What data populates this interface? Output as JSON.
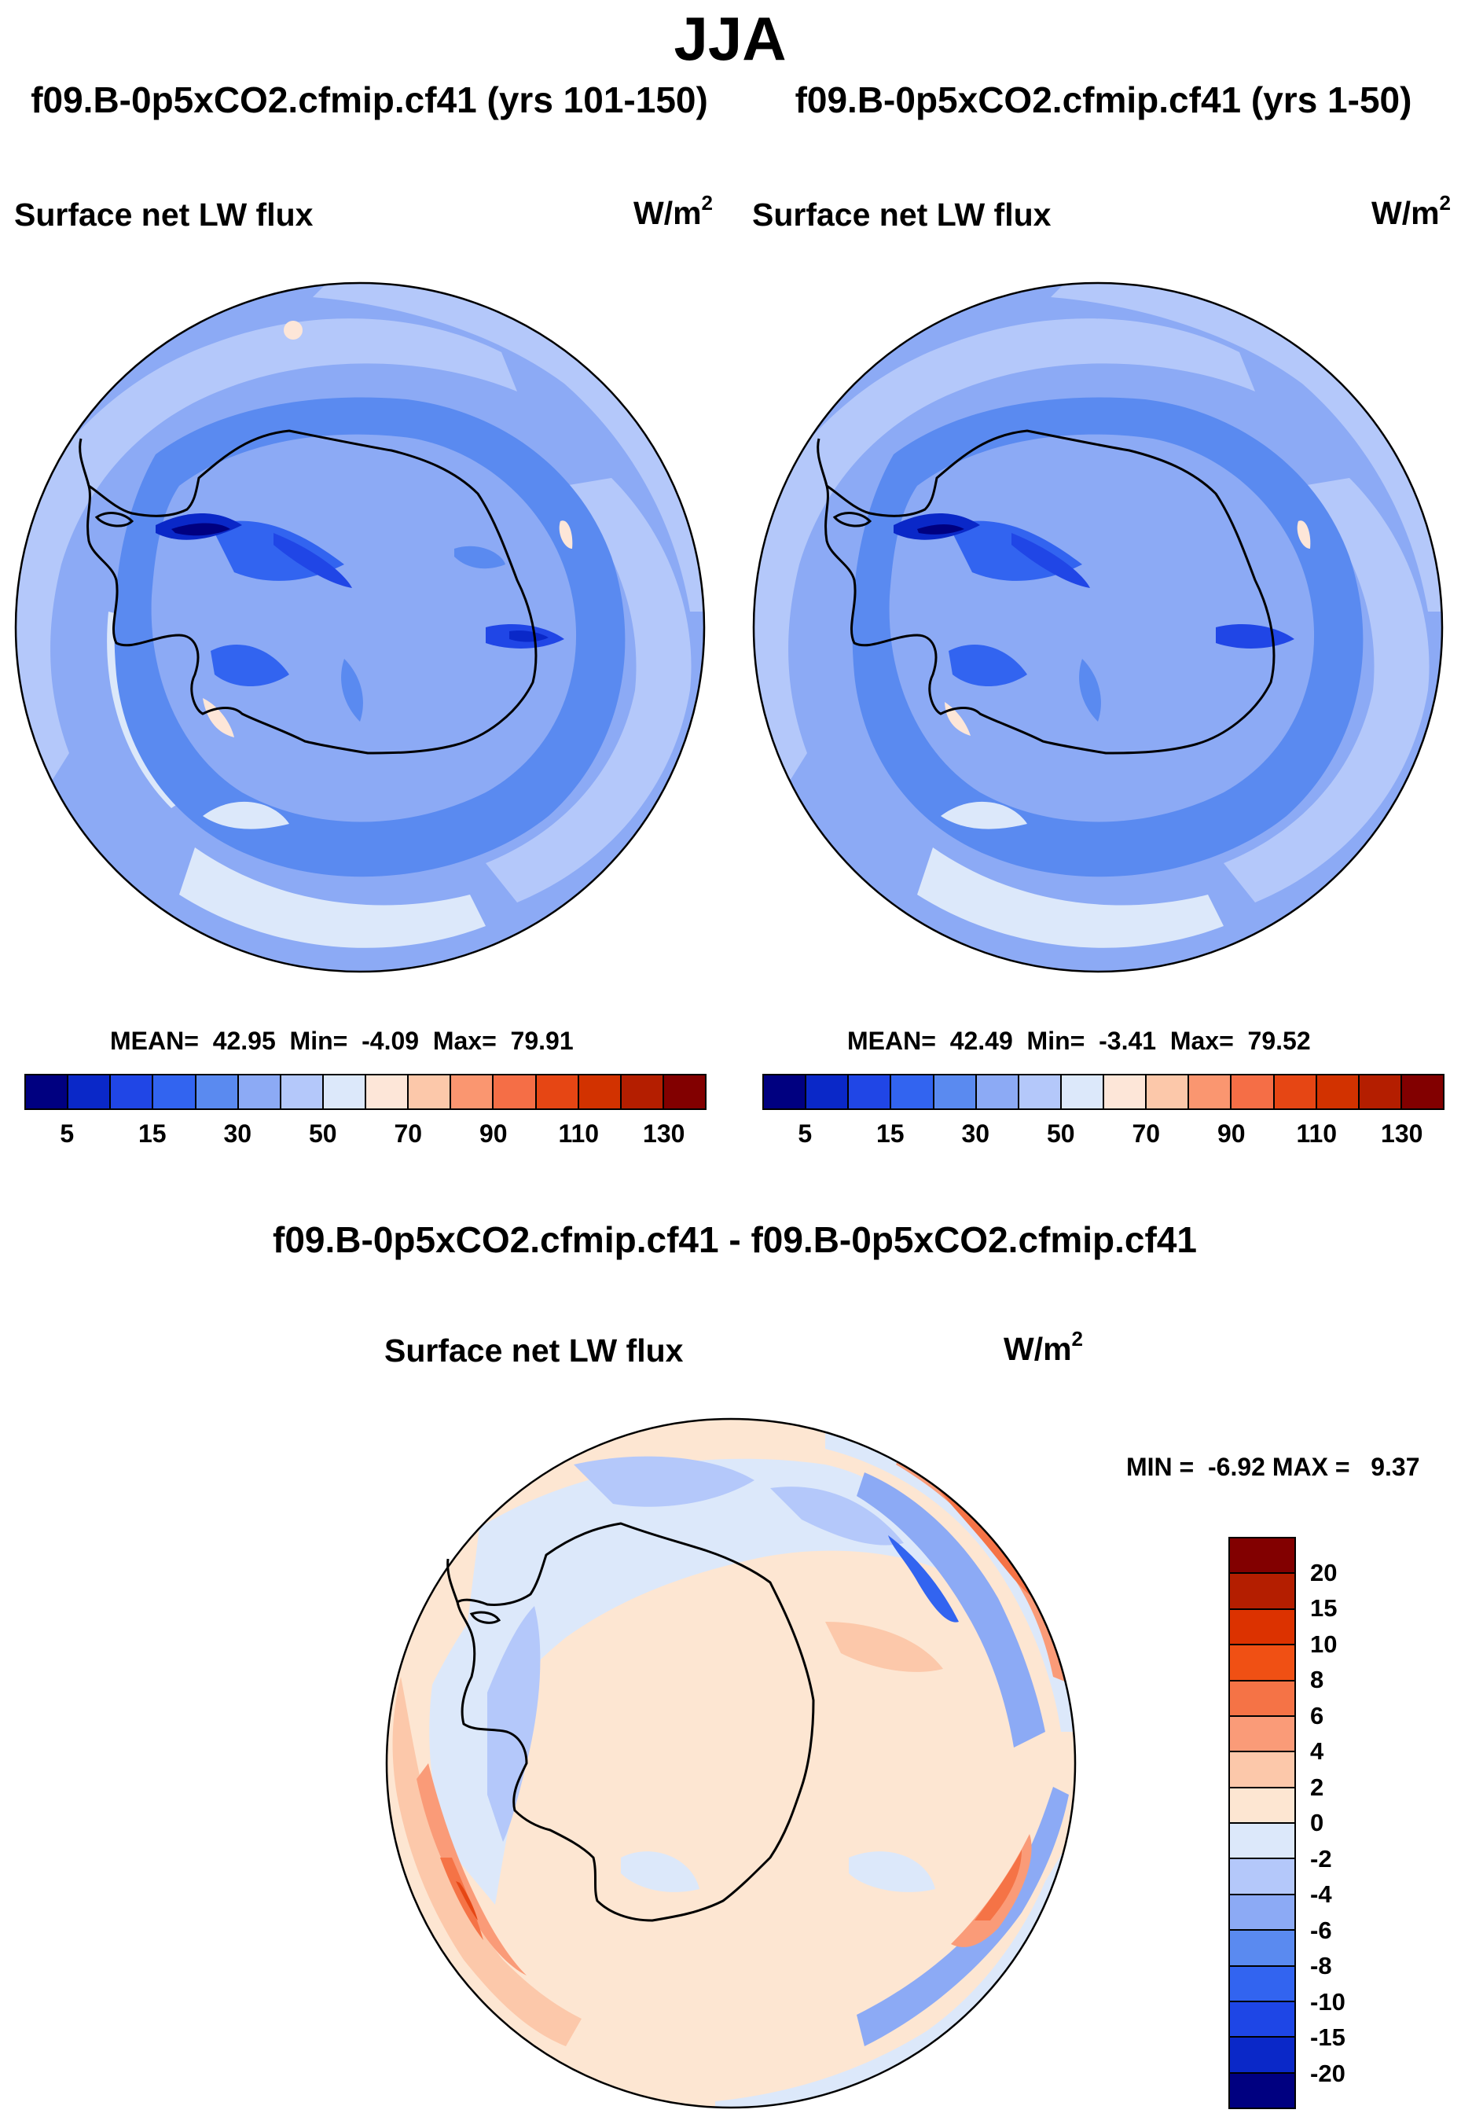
{
  "figure": {
    "title": "JJA",
    "diff_title": "f09.B-0p5xCO2.cfmip.cf41 - f09.B-0p5xCO2.cfmip.cf41"
  },
  "panels": [
    {
      "case_title": "f09.B-0p5xCO2.cfmip.cf41 (yrs 101-150)",
      "variable": "Surface net LW flux",
      "units": "W/m",
      "units_exp": "2",
      "stats": {
        "mean_label": "MEAN=",
        "mean": "42.95",
        "min_label": "Min=",
        "min": "-4.09",
        "max_label": "Max=",
        "max": "79.91"
      }
    },
    {
      "case_title": "f09.B-0p5xCO2.cfmip.cf41 (yrs 1-50)",
      "variable": "Surface net LW flux",
      "units": "W/m",
      "units_exp": "2",
      "stats": {
        "mean_label": "MEAN=",
        "mean": "42.49",
        "min_label": "Min=",
        "min": "-3.41",
        "max_label": "Max=",
        "max": "79.52"
      }
    },
    {
      "variable": "Surface net LW flux",
      "units": "W/m",
      "units_exp": "2",
      "stats": {
        "min_label": "MIN =",
        "min": "-6.92",
        "max_label": "MAX =",
        "max": "9.37"
      }
    }
  ],
  "colorbar_abs": {
    "colors": [
      "#000080",
      "#0a28c8",
      "#2046e6",
      "#3264f0",
      "#5a8af0",
      "#8caaf5",
      "#b4c8fa",
      "#dce8fa",
      "#fde6d8",
      "#fcc8aa",
      "#fa9670",
      "#f56e46",
      "#e64614",
      "#d23200",
      "#b41e00",
      "#820000"
    ],
    "tick_labels": [
      "5",
      "15",
      "30",
      "50",
      "70",
      "90",
      "110",
      "130"
    ]
  },
  "colorbar_diff": {
    "colors": [
      "#820000",
      "#b41e00",
      "#dc3200",
      "#f05014",
      "#f57346",
      "#fa9b78",
      "#fcc8aa",
      "#fde6d2",
      "#dce8fa",
      "#b4c8fa",
      "#8caaf5",
      "#5a8af0",
      "#3264f0",
      "#1e46e6",
      "#0a28c8",
      "#000080"
    ],
    "tick_labels": [
      "20",
      "15",
      "10",
      "8",
      "6",
      "4",
      "2",
      "0",
      "-2",
      "-4",
      "-6",
      "-8",
      "-10",
      "-15",
      "-20"
    ]
  }
}
